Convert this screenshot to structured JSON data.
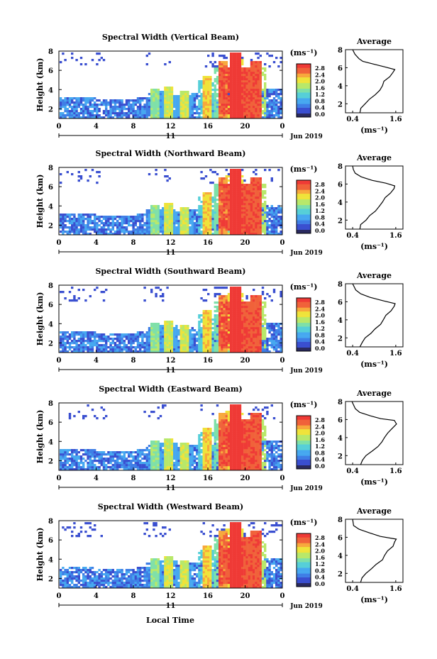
{
  "footer_label": "Local Time",
  "colors": {
    "scale": [
      "#2a2a60",
      "#3a4fd0",
      "#3f7fe6",
      "#46a8f0",
      "#56cfd8",
      "#7fe0a8",
      "#b8e86a",
      "#efe33a",
      "#f7a83c",
      "#f0623a",
      "#ef3a36"
    ]
  },
  "chart_data": [
    {
      "type": "heatmap",
      "title": "Spectral Width (Vertical Beam)",
      "ylabel": "Height (km)",
      "xticks": [
        "0",
        "4",
        "8",
        "12",
        "16",
        "20",
        "0"
      ],
      "ytick_labels": [
        "2",
        "4",
        "6",
        "8"
      ],
      "xlim": [
        0,
        24
      ],
      "ylim": [
        1,
        8
      ],
      "date_day": "11",
      "date_month": "Jun 2019",
      "colorbar": {
        "unit": "(ms⁻¹)",
        "ticks": [
          "0.0",
          "0.4",
          "0.8",
          "1.2",
          "1.6",
          "2.0",
          "2.4",
          "2.8"
        ],
        "range": [
          0,
          2.8
        ]
      },
      "average": {
        "title": "Average",
        "xlabel": "(ms⁻¹)",
        "xticks": [
          "0.4",
          "1.6"
        ],
        "xlim": [
          0.2,
          1.8
        ],
        "yticks": [
          "2",
          "4",
          "6",
          "8"
        ],
        "ylim": [
          1,
          8
        ],
        "profile": [
          [
            0.6,
            1.0
          ],
          [
            0.62,
            1.5
          ],
          [
            0.72,
            2.0
          ],
          [
            0.85,
            2.5
          ],
          [
            1.0,
            3.0
          ],
          [
            1.15,
            3.5
          ],
          [
            1.25,
            4.0
          ],
          [
            1.3,
            4.5
          ],
          [
            1.45,
            5.0
          ],
          [
            1.55,
            5.5
          ],
          [
            1.6,
            5.8
          ],
          [
            1.3,
            6.1
          ],
          [
            1.0,
            6.4
          ],
          [
            0.7,
            6.7
          ],
          [
            0.55,
            7.0
          ],
          [
            0.45,
            7.5
          ],
          [
            0.4,
            8.0
          ]
        ]
      }
    },
    {
      "type": "heatmap",
      "title": "Spectral Width (Northward Beam)",
      "ylabel": "Height (km)",
      "xticks": [
        "0",
        "4",
        "8",
        "12",
        "16",
        "20",
        "0"
      ],
      "ytick_labels": [
        "2",
        "4",
        "6",
        "8"
      ],
      "xlim": [
        0,
        24
      ],
      "ylim": [
        1,
        8
      ],
      "date_day": "11",
      "date_month": "Jun 2019",
      "colorbar": {
        "unit": "(ms⁻¹)",
        "ticks": [
          "0.0",
          "0.4",
          "0.8",
          "1.2",
          "1.6",
          "2.0",
          "2.4",
          "2.8"
        ],
        "range": [
          0,
          2.8
        ]
      },
      "average": {
        "title": "Average",
        "xlabel": "(ms⁻¹)",
        "xticks": [
          "0.4",
          "1.6"
        ],
        "xlim": [
          0.2,
          1.8
        ],
        "yticks": [
          "2",
          "4",
          "6",
          "8"
        ],
        "ylim": [
          1,
          8
        ],
        "profile": [
          [
            0.6,
            1.0
          ],
          [
            0.63,
            1.5
          ],
          [
            0.75,
            2.0
          ],
          [
            0.88,
            2.5
          ],
          [
            1.02,
            3.0
          ],
          [
            1.12,
            3.5
          ],
          [
            1.22,
            4.0
          ],
          [
            1.32,
            4.5
          ],
          [
            1.45,
            5.0
          ],
          [
            1.58,
            5.5
          ],
          [
            1.6,
            5.8
          ],
          [
            1.3,
            6.1
          ],
          [
            0.95,
            6.4
          ],
          [
            0.65,
            6.8
          ],
          [
            0.5,
            7.2
          ],
          [
            0.42,
            7.6
          ],
          [
            0.4,
            8.0
          ]
        ]
      }
    },
    {
      "type": "heatmap",
      "title": "Spectral Width (Southward Beam)",
      "ylabel": "Height (km)",
      "xticks": [
        "0",
        "4",
        "8",
        "12",
        "16",
        "20",
        "0"
      ],
      "ytick_labels": [
        "2",
        "4",
        "6",
        "8"
      ],
      "xlim": [
        0,
        24
      ],
      "ylim": [
        1,
        8
      ],
      "date_day": "11",
      "date_month": "Jun 2019",
      "colorbar": {
        "unit": "(ms⁻¹)",
        "ticks": [
          "0.0",
          "0.4",
          "0.8",
          "1.2",
          "1.6",
          "2.0",
          "2.4",
          "2.8"
        ],
        "range": [
          0,
          2.8
        ]
      },
      "average": {
        "title": "Average",
        "xlabel": "(ms⁻¹)",
        "xticks": [
          "0.4",
          "1.6"
        ],
        "xlim": [
          0.2,
          1.8
        ],
        "yticks": [
          "2",
          "4",
          "6",
          "8"
        ],
        "ylim": [
          1,
          8
        ],
        "profile": [
          [
            0.6,
            1.0
          ],
          [
            0.64,
            1.5
          ],
          [
            0.74,
            2.0
          ],
          [
            0.9,
            2.5
          ],
          [
            1.05,
            3.0
          ],
          [
            1.15,
            3.5
          ],
          [
            1.25,
            4.0
          ],
          [
            1.35,
            4.5
          ],
          [
            1.48,
            5.0
          ],
          [
            1.55,
            5.5
          ],
          [
            1.6,
            5.8
          ],
          [
            1.25,
            6.1
          ],
          [
            0.9,
            6.5
          ],
          [
            0.6,
            6.9
          ],
          [
            0.48,
            7.3
          ],
          [
            0.4,
            8.0
          ]
        ]
      }
    },
    {
      "type": "heatmap",
      "title": "Spectral Width (Eastward Beam)",
      "ylabel": "Height (km)",
      "xticks": [
        "0",
        "4",
        "8",
        "12",
        "16",
        "20",
        "0"
      ],
      "ytick_labels": [
        "2",
        "4",
        "6",
        "8"
      ],
      "xlim": [
        0,
        24
      ],
      "ylim": [
        1,
        8
      ],
      "date_day": "11",
      "date_month": "Jun 2019",
      "colorbar": {
        "unit": "(ms⁻¹)",
        "ticks": [
          "0.0",
          "0.4",
          "0.8",
          "1.2",
          "1.6",
          "2.0",
          "2.4",
          "2.8"
        ],
        "range": [
          0,
          2.8
        ]
      },
      "average": {
        "title": "Average",
        "xlabel": "(ms⁻¹)",
        "xticks": [
          "0.4",
          "1.6"
        ],
        "xlim": [
          0.2,
          1.8
        ],
        "yticks": [
          "2",
          "4",
          "6",
          "8"
        ],
        "ylim": [
          1,
          8
        ],
        "profile": [
          [
            0.62,
            1.0
          ],
          [
            0.66,
            1.5
          ],
          [
            0.78,
            2.0
          ],
          [
            0.92,
            2.5
          ],
          [
            1.08,
            3.0
          ],
          [
            1.2,
            3.5
          ],
          [
            1.3,
            4.0
          ],
          [
            1.4,
            4.5
          ],
          [
            1.5,
            5.0
          ],
          [
            1.6,
            5.5
          ],
          [
            1.55,
            5.9
          ],
          [
            1.2,
            6.1
          ],
          [
            0.9,
            6.4
          ],
          [
            0.6,
            6.8
          ],
          [
            0.45,
            7.2
          ],
          [
            0.4,
            7.6
          ],
          [
            0.38,
            8.0
          ]
        ]
      }
    },
    {
      "type": "heatmap",
      "title": "Spectral Width (Westward Beam)",
      "ylabel": "Height (km)",
      "xticks": [
        "0",
        "4",
        "8",
        "12",
        "16",
        "20",
        "0"
      ],
      "ytick_labels": [
        "2",
        "4",
        "6",
        "8"
      ],
      "xlim": [
        0,
        24
      ],
      "ylim": [
        1,
        8
      ],
      "date_day": "11",
      "date_month": "Jun 2019",
      "colorbar": {
        "unit": "(ms⁻¹)",
        "ticks": [
          "0.0",
          "0.4",
          "0.8",
          "1.2",
          "1.6",
          "2.0",
          "2.4",
          "2.8"
        ],
        "range": [
          0,
          2.8
        ]
      },
      "average": {
        "title": "Average",
        "xlabel": "(ms⁻¹)",
        "xticks": [
          "0.4",
          "1.6"
        ],
        "xlim": [
          0.2,
          1.8
        ],
        "yticks": [
          "2",
          "4",
          "6",
          "8"
        ],
        "ylim": [
          1,
          8
        ],
        "profile": [
          [
            0.62,
            1.0
          ],
          [
            0.64,
            1.5
          ],
          [
            0.76,
            2.0
          ],
          [
            0.9,
            2.5
          ],
          [
            1.05,
            3.0
          ],
          [
            1.2,
            3.5
          ],
          [
            1.3,
            4.0
          ],
          [
            1.38,
            4.5
          ],
          [
            1.5,
            5.0
          ],
          [
            1.58,
            5.5
          ],
          [
            1.6,
            5.8
          ],
          [
            1.2,
            6.1
          ],
          [
            0.85,
            6.5
          ],
          [
            0.55,
            6.9
          ],
          [
            0.45,
            7.3
          ],
          [
            0.4,
            8.0
          ]
        ]
      }
    }
  ]
}
